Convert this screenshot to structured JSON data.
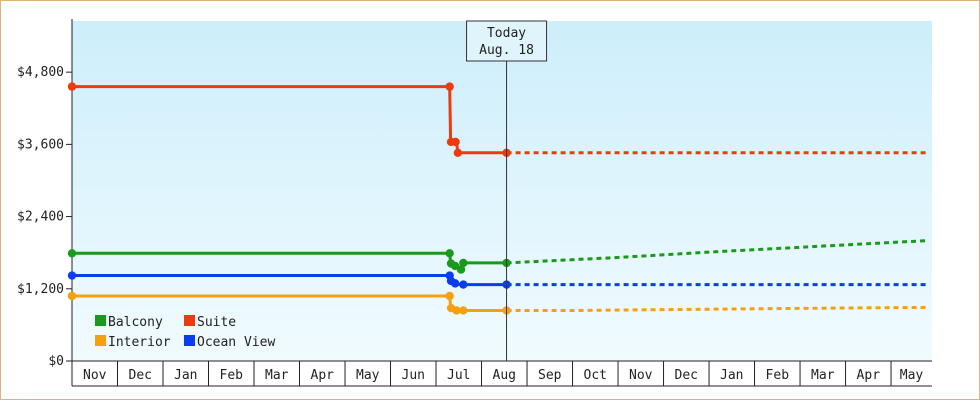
{
  "chart_data": {
    "type": "line",
    "x_axis": {
      "labels": [
        "Nov",
        "Dec",
        "Jan",
        "Feb",
        "Mar",
        "Apr",
        "May",
        "Jun",
        "Jul",
        "Aug",
        "Sep",
        "Oct",
        "Nov",
        "Dec",
        "Jan",
        "Feb",
        "Mar",
        "Apr",
        "May"
      ]
    },
    "y_axis": {
      "ticks": [
        0,
        1200,
        2400,
        3600,
        4800
      ],
      "tick_labels": [
        "$0",
        "$1,200",
        "$2,400",
        "$3,600",
        "$4,800"
      ],
      "ylim": [
        0,
        5650
      ]
    },
    "today_marker": {
      "line1": "Today",
      "line2": "Aug. 18",
      "x_month": 9.55
    },
    "legend": {
      "placement": "bottom-left"
    },
    "series": [
      {
        "name": "Balcony",
        "color": "#1a9a1a",
        "history": [
          [
            0,
            1790
          ],
          [
            8.3,
            1790
          ],
          [
            8.32,
            1630
          ],
          [
            8.4,
            1590
          ],
          [
            8.55,
            1520
          ],
          [
            8.6,
            1630
          ],
          [
            9.55,
            1630
          ]
        ],
        "markers": [
          [
            0,
            1790
          ],
          [
            8.3,
            1790
          ],
          [
            8.33,
            1620
          ],
          [
            8.42,
            1580
          ],
          [
            8.55,
            1520
          ],
          [
            8.6,
            1630
          ],
          [
            9.55,
            1630
          ]
        ],
        "forecast": [
          [
            9.55,
            1630
          ],
          [
            12,
            1720
          ],
          [
            14,
            1810
          ],
          [
            16,
            1890
          ],
          [
            18,
            1970
          ],
          [
            18.8,
            2000
          ]
        ]
      },
      {
        "name": "Suite",
        "color": "#ee3a0c",
        "history": [
          [
            0,
            4560
          ],
          [
            8.3,
            4560
          ],
          [
            8.32,
            3640
          ],
          [
            8.45,
            3640
          ],
          [
            8.48,
            3460
          ],
          [
            9.55,
            3460
          ]
        ],
        "markers": [
          [
            0,
            4560
          ],
          [
            8.3,
            4560
          ],
          [
            8.33,
            3640
          ],
          [
            8.43,
            3640
          ],
          [
            8.48,
            3460
          ],
          [
            9.55,
            3460
          ]
        ],
        "forecast": [
          [
            9.55,
            3460
          ],
          [
            18.8,
            3460
          ]
        ]
      },
      {
        "name": "Interior",
        "color": "#f5a00f",
        "history": [
          [
            0,
            1080
          ],
          [
            8.3,
            1080
          ],
          [
            8.32,
            890
          ],
          [
            8.4,
            840
          ],
          [
            9.55,
            840
          ]
        ],
        "markers": [
          [
            0,
            1080
          ],
          [
            8.3,
            1080
          ],
          [
            8.33,
            880
          ],
          [
            8.45,
            840
          ],
          [
            8.6,
            840
          ],
          [
            9.55,
            840
          ]
        ],
        "forecast": [
          [
            9.55,
            840
          ],
          [
            11,
            840
          ],
          [
            14,
            860
          ],
          [
            17,
            880
          ],
          [
            18.8,
            890
          ]
        ]
      },
      {
        "name": "Ocean View",
        "color": "#0a3cf0",
        "history": [
          [
            0,
            1420
          ],
          [
            8.3,
            1420
          ],
          [
            8.32,
            1330
          ],
          [
            8.4,
            1280
          ],
          [
            8.6,
            1270
          ],
          [
            9.55,
            1270
          ]
        ],
        "markers": [
          [
            0,
            1420
          ],
          [
            8.3,
            1420
          ],
          [
            8.33,
            1330
          ],
          [
            8.42,
            1290
          ],
          [
            8.6,
            1270
          ],
          [
            9.55,
            1270
          ]
        ],
        "forecast": [
          [
            9.55,
            1270
          ],
          [
            18.8,
            1270
          ]
        ]
      }
    ]
  }
}
